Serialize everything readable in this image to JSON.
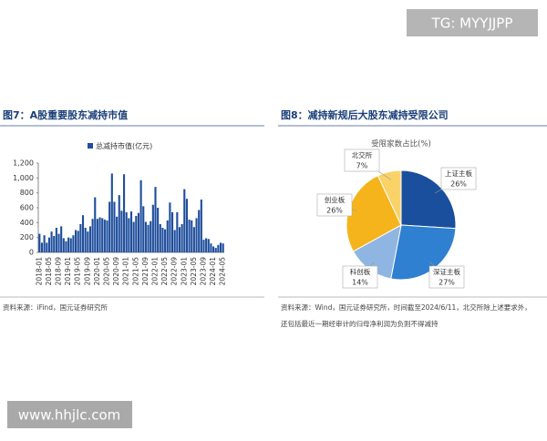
{
  "watermark_top": "TG: MYYJJPP",
  "watermark_bottom": "www.hhjlc.com",
  "chart_data": [
    {
      "type": "bar",
      "title": "图7：A股重要股东减持市值",
      "source": "资料来源：iFind，国元证券研究所",
      "categories": [
        "2018-01",
        null,
        null,
        null,
        "2018-05",
        null,
        null,
        null,
        "2018-09",
        null,
        null,
        null,
        "2019-01",
        null,
        null,
        null,
        "2019-05",
        null,
        null,
        null,
        "2019-09",
        null,
        null,
        null,
        "2020-01",
        null,
        null,
        null,
        "2020-05",
        null,
        null,
        null,
        "2020-09",
        null,
        null,
        null,
        "2021-01",
        null,
        null,
        null,
        "2021-05",
        null,
        null,
        null,
        "2021-09",
        null,
        null,
        null,
        "2022-01",
        null,
        null,
        null,
        "2022-05",
        null,
        null,
        null,
        "2022-09",
        null,
        null,
        null,
        "2023-01",
        null,
        null,
        null,
        "2023-05",
        null,
        null,
        null,
        "2023-09",
        null,
        null,
        null,
        "2024-01",
        null,
        null,
        null,
        "2024-05"
      ],
      "series": [
        {
          "name": "总减持市值(亿元)",
          "color": "#1f4e9c",
          "values": [
            250,
            130,
            230,
            130,
            200,
            280,
            220,
            330,
            250,
            350,
            190,
            150,
            200,
            190,
            230,
            300,
            290,
            380,
            500,
            330,
            280,
            350,
            450,
            740,
            450,
            470,
            460,
            440,
            430,
            680,
            1060,
            680,
            480,
            770,
            560,
            1050,
            540,
            460,
            550,
            410,
            490,
            530,
            970,
            620,
            410,
            370,
            420,
            640,
            880,
            600,
            380,
            330,
            310,
            430,
            670,
            540,
            300,
            540,
            340,
            380,
            850,
            720,
            440,
            430,
            340,
            460,
            570,
            710,
            170,
            190,
            180,
            120,
            80,
            60,
            100,
            130,
            120
          ]
        }
      ],
      "ylim": [
        0,
        1200
      ],
      "yticks": [
        0,
        200,
        400,
        600,
        800,
        {
          "value": 1000,
          "label": "1,000"
        },
        {
          "value": 1200,
          "label": "1,200"
        }
      ]
    },
    {
      "type": "pie",
      "title": "图8：减持新规后大股东减持受限公司",
      "subtitle": "受限家数占比(%)",
      "source": [
        "资料来源：Wind，国元证券研究所，时间截至2024/6/11，北交所除上述要求外，",
        "还包括最近一期经审计的归母净利润为负则不得减持"
      ],
      "categories": [
        "上证主板",
        "深证主板",
        "科创板",
        "创业板",
        "北交所"
      ],
      "values": [
        26,
        27,
        14,
        26,
        7
      ],
      "value_labels": [
        "26%",
        "27%",
        "14%",
        "26%",
        "7%"
      ],
      "colors": [
        "#1a4f9e",
        "#2f80d1",
        "#8fb5e2",
        "#f5b41c",
        "#f9d268"
      ]
    }
  ]
}
